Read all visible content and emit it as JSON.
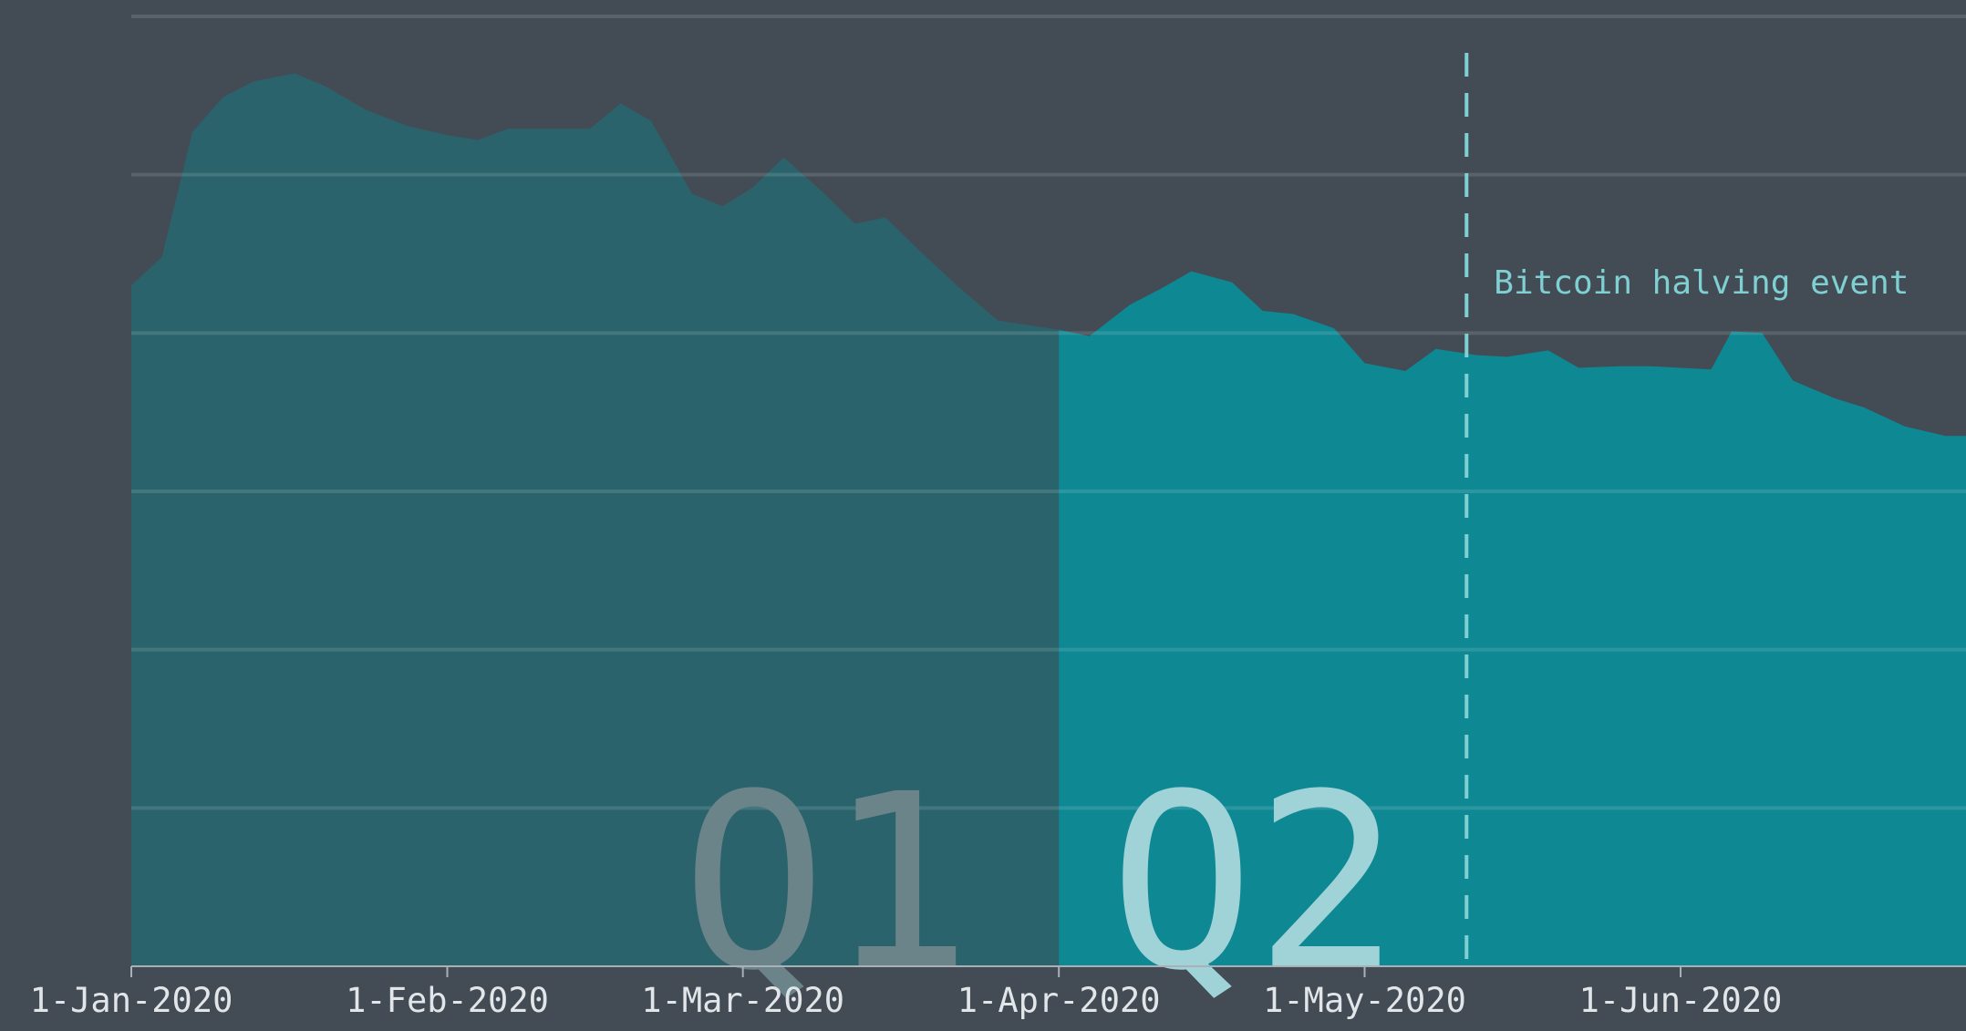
{
  "chart_data": {
    "type": "area",
    "x": [
      "2020-01-01",
      "2020-01-04",
      "2020-01-07",
      "2020-01-10",
      "2020-01-13",
      "2020-01-17",
      "2020-01-20",
      "2020-01-24",
      "2020-01-28",
      "2020-02-01",
      "2020-02-04",
      "2020-02-07",
      "2020-02-11",
      "2020-02-15",
      "2020-02-18",
      "2020-02-21",
      "2020-02-25",
      "2020-02-28",
      "2020-03-02",
      "2020-03-05",
      "2020-03-09",
      "2020-03-12",
      "2020-03-15",
      "2020-03-18",
      "2020-03-22",
      "2020-03-26",
      "2020-04-01",
      "2020-04-04",
      "2020-04-08",
      "2020-04-11",
      "2020-04-14",
      "2020-04-18",
      "2020-04-21",
      "2020-04-24",
      "2020-04-28",
      "2020-05-01",
      "2020-05-05",
      "2020-05-08",
      "2020-05-12",
      "2020-05-15",
      "2020-05-19",
      "2020-05-22",
      "2020-05-26",
      "2020-05-29",
      "2020-06-01",
      "2020-06-04",
      "2020-06-06",
      "2020-06-09",
      "2020-06-12",
      "2020-06-16",
      "2020-06-19",
      "2020-06-23",
      "2020-06-27",
      "2020-06-29"
    ],
    "values": [
      4.3,
      4.48,
      5.27,
      5.49,
      5.59,
      5.64,
      5.56,
      5.41,
      5.31,
      5.25,
      5.22,
      5.29,
      5.29,
      5.29,
      5.45,
      5.34,
      4.88,
      4.8,
      4.92,
      5.11,
      4.88,
      4.69,
      4.73,
      4.54,
      4.3,
      4.08,
      4.02,
      3.98,
      4.18,
      4.28,
      4.39,
      4.32,
      4.14,
      4.12,
      4.03,
      3.81,
      3.76,
      3.9,
      3.86,
      3.85,
      3.89,
      3.78,
      3.79,
      3.79,
      3.78,
      3.77,
      4.01,
      4.0,
      3.7,
      3.59,
      3.53,
      3.41,
      3.35,
      3.35
    ],
    "colors": [
      "#2b636c",
      "#0e8893"
    ],
    "quarter_boundary": "2020-04-01",
    "quarter_labels": [
      "Q1",
      "Q2"
    ],
    "annotation": {
      "x": "2020-05-11",
      "text": "Bitcoin halving event"
    },
    "xlim": [
      "2020-01-01",
      "2020-06-29"
    ],
    "xticks": [
      {
        "value": "2020-01-01",
        "label": "1-Jan-2020"
      },
      {
        "value": "2020-02-01",
        "label": "1-Feb-2020"
      },
      {
        "value": "2020-03-01",
        "label": "1-Mar-2020"
      },
      {
        "value": "2020-04-01",
        "label": "1-Apr-2020"
      },
      {
        "value": "2020-05-01",
        "label": "1-May-2020"
      },
      {
        "value": "2020-06-01",
        "label": "1-Jun-2020"
      }
    ],
    "ylim": [
      0,
      6
    ],
    "yticks": [
      0,
      1,
      2,
      3,
      4,
      5,
      6
    ],
    "grid": true
  }
}
